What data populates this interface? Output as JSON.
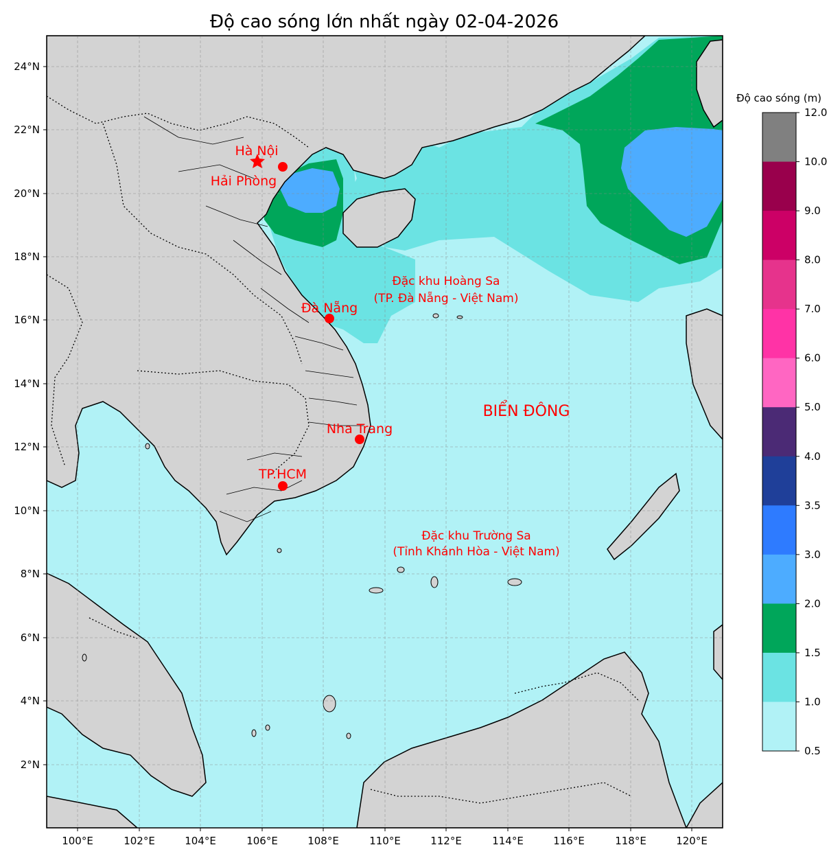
{
  "title": "Độ cao sóng lớn nhất ngày 02-04-2026",
  "map": {
    "x_ticks": [
      "100°E",
      "102°E",
      "104°E",
      "106°E",
      "108°E",
      "110°E",
      "112°E",
      "114°E",
      "116°E",
      "118°E",
      "120°E"
    ],
    "y_ticks": [
      "24°N",
      "22°N",
      "20°N",
      "18°N",
      "16°N",
      "14°N",
      "12°N",
      "10°N",
      "8°N",
      "6°N",
      "4°N",
      "2°N"
    ],
    "gridlines": true,
    "cities": [
      {
        "name": "Hà Nội",
        "marker": "star"
      },
      {
        "name": "Hải Phòng",
        "marker": "dot"
      },
      {
        "name": "Đà Nẵng",
        "marker": "dot"
      },
      {
        "name": "Nha Trang",
        "marker": "dot"
      },
      {
        "name": "TP.HCM",
        "marker": "dot"
      }
    ],
    "labels": {
      "hoang_sa_1": "Đặc khu Hoàng Sa",
      "hoang_sa_2": "(TP. Đà Nẵng - Việt Nam)",
      "bien_dong": "BIỂN ĐÔNG",
      "truong_sa_1": "Đặc khu Trường Sa",
      "truong_sa_2": "(Tỉnh Khánh Hòa - Việt Nam)"
    }
  },
  "colorbar": {
    "title": "Độ cao sóng (m)",
    "tick_labels": [
      "12.0",
      "10.0",
      "9.0",
      "8.0",
      "7.0",
      "6.0",
      "5.0",
      "4.0",
      "3.5",
      "3.0",
      "2.0",
      "1.5",
      "1.0",
      "0.5"
    ],
    "colors": [
      "#808080",
      "#99004c",
      "#cc0066",
      "#e6338c",
      "#ff33a6",
      "#ff66c2",
      "#4b2a75",
      "#1f3f99",
      "#2e7bff",
      "#4dacff",
      "#00a65a",
      "#6be3e3",
      "#b1f2f6"
    ]
  }
}
